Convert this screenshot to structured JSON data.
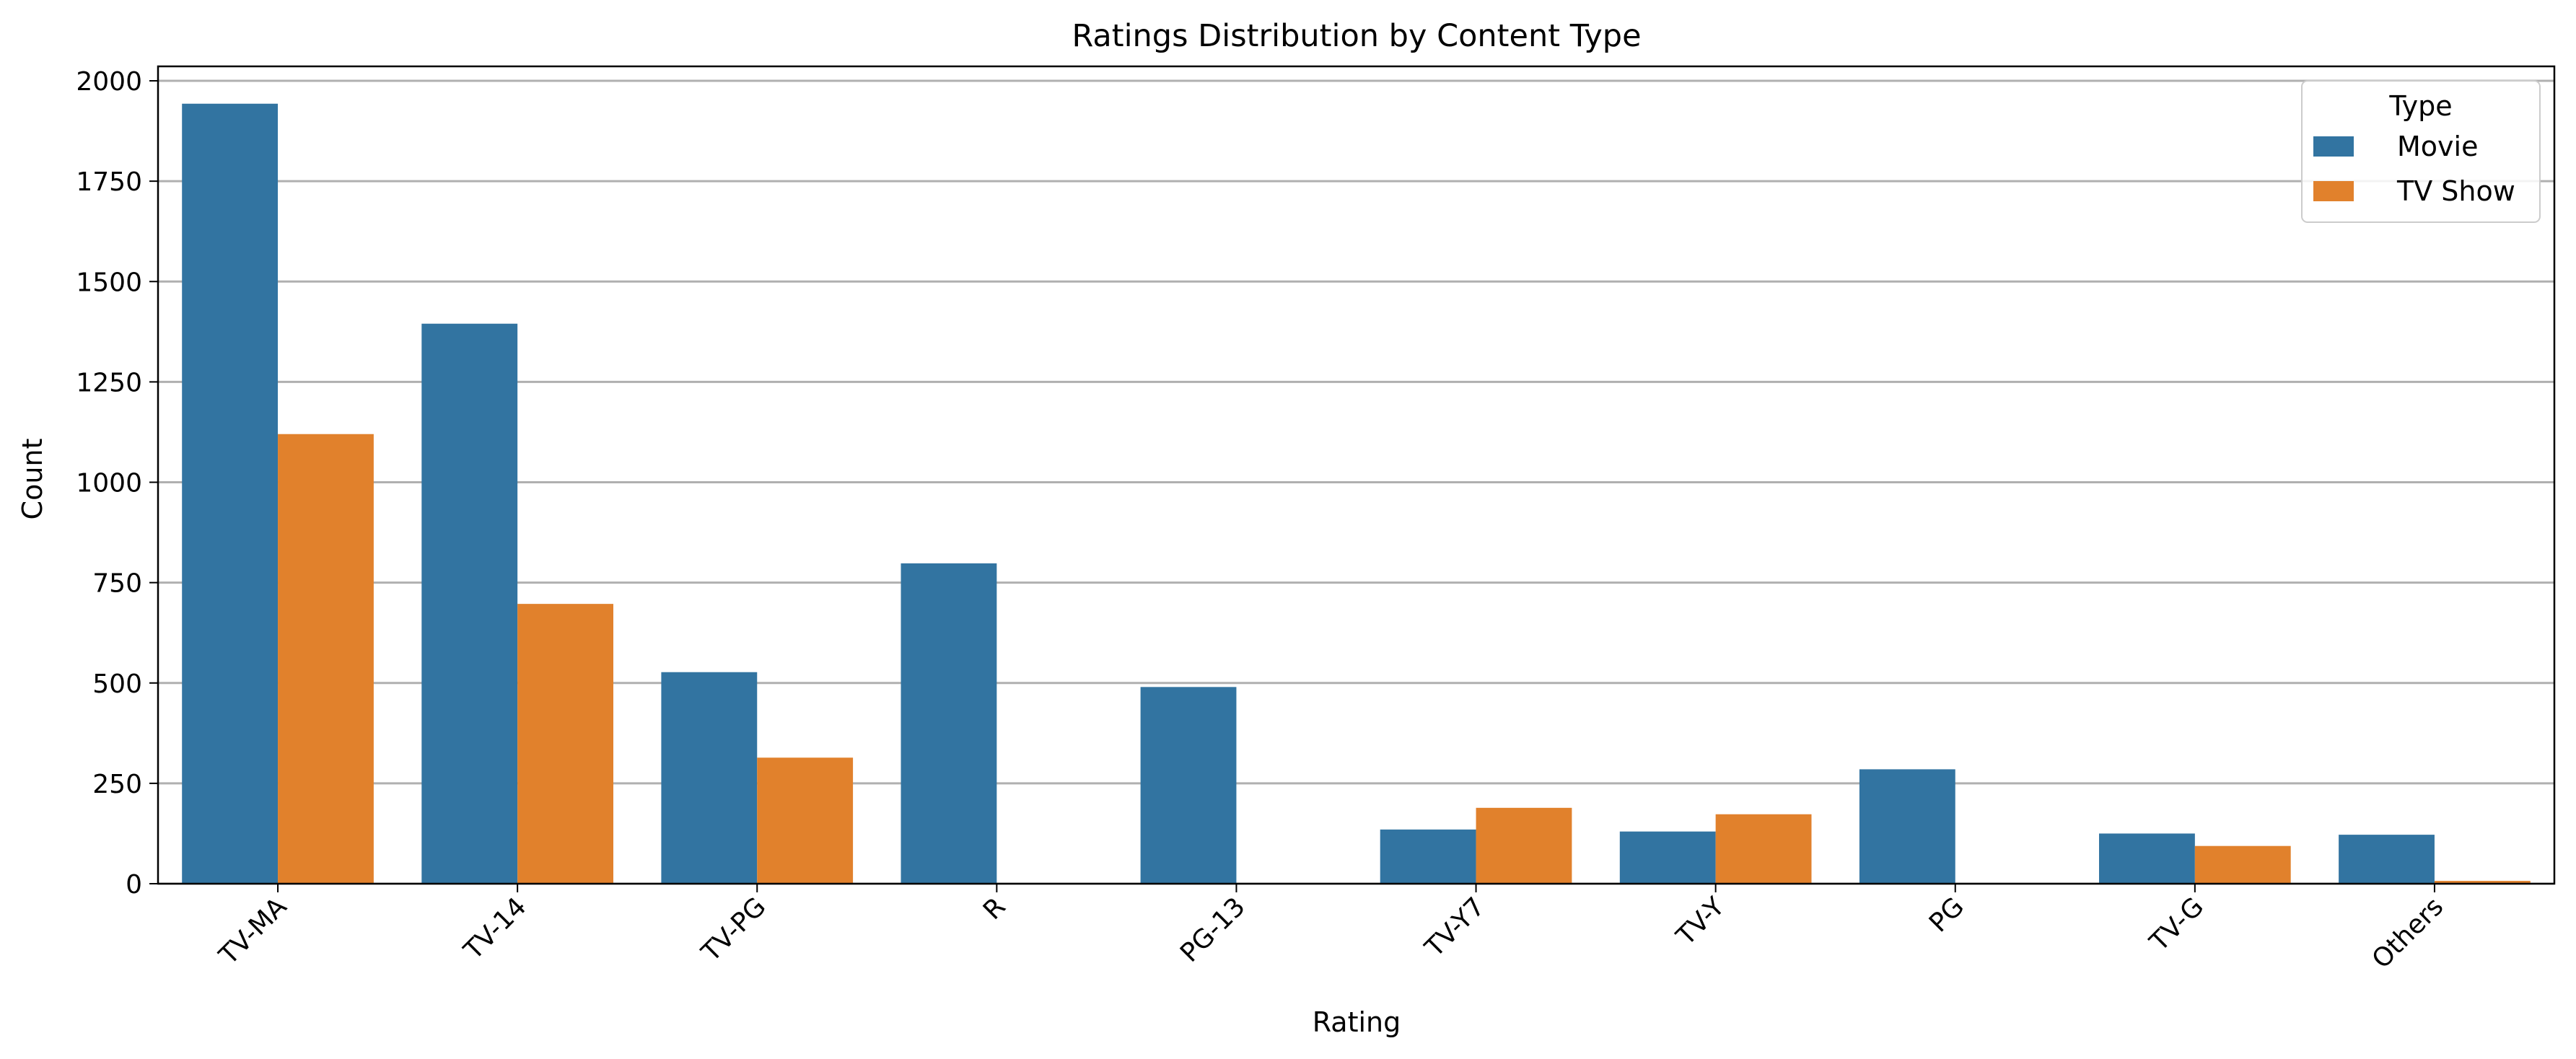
{
  "chart_data": {
    "type": "bar",
    "title": "Ratings Distribution by Content Type",
    "xlabel": "Rating",
    "ylabel": "Count",
    "categories": [
      "TV-MA",
      "TV-14",
      "TV-PG",
      "R",
      "PG-13",
      "TV-Y7",
      "TV-Y",
      "PG",
      "TV-G",
      "Others"
    ],
    "series": [
      {
        "name": "Movie",
        "color": "#3274a1",
        "values": [
          1943,
          1395,
          527,
          798,
          490,
          135,
          130,
          285,
          125,
          122
        ]
      },
      {
        "name": "TV Show",
        "color": "#e1812c",
        "values": [
          1120,
          697,
          314,
          0,
          0,
          189,
          173,
          0,
          94,
          7
        ]
      }
    ],
    "ylim": [
      0,
      2036
    ],
    "yticks": [
      "0",
      "250",
      "500",
      "750",
      "1000",
      "1250",
      "1500",
      "1750",
      "2000"
    ],
    "grid": "horizontal",
    "legend": {
      "title": "Type",
      "placement": "top-right"
    }
  }
}
